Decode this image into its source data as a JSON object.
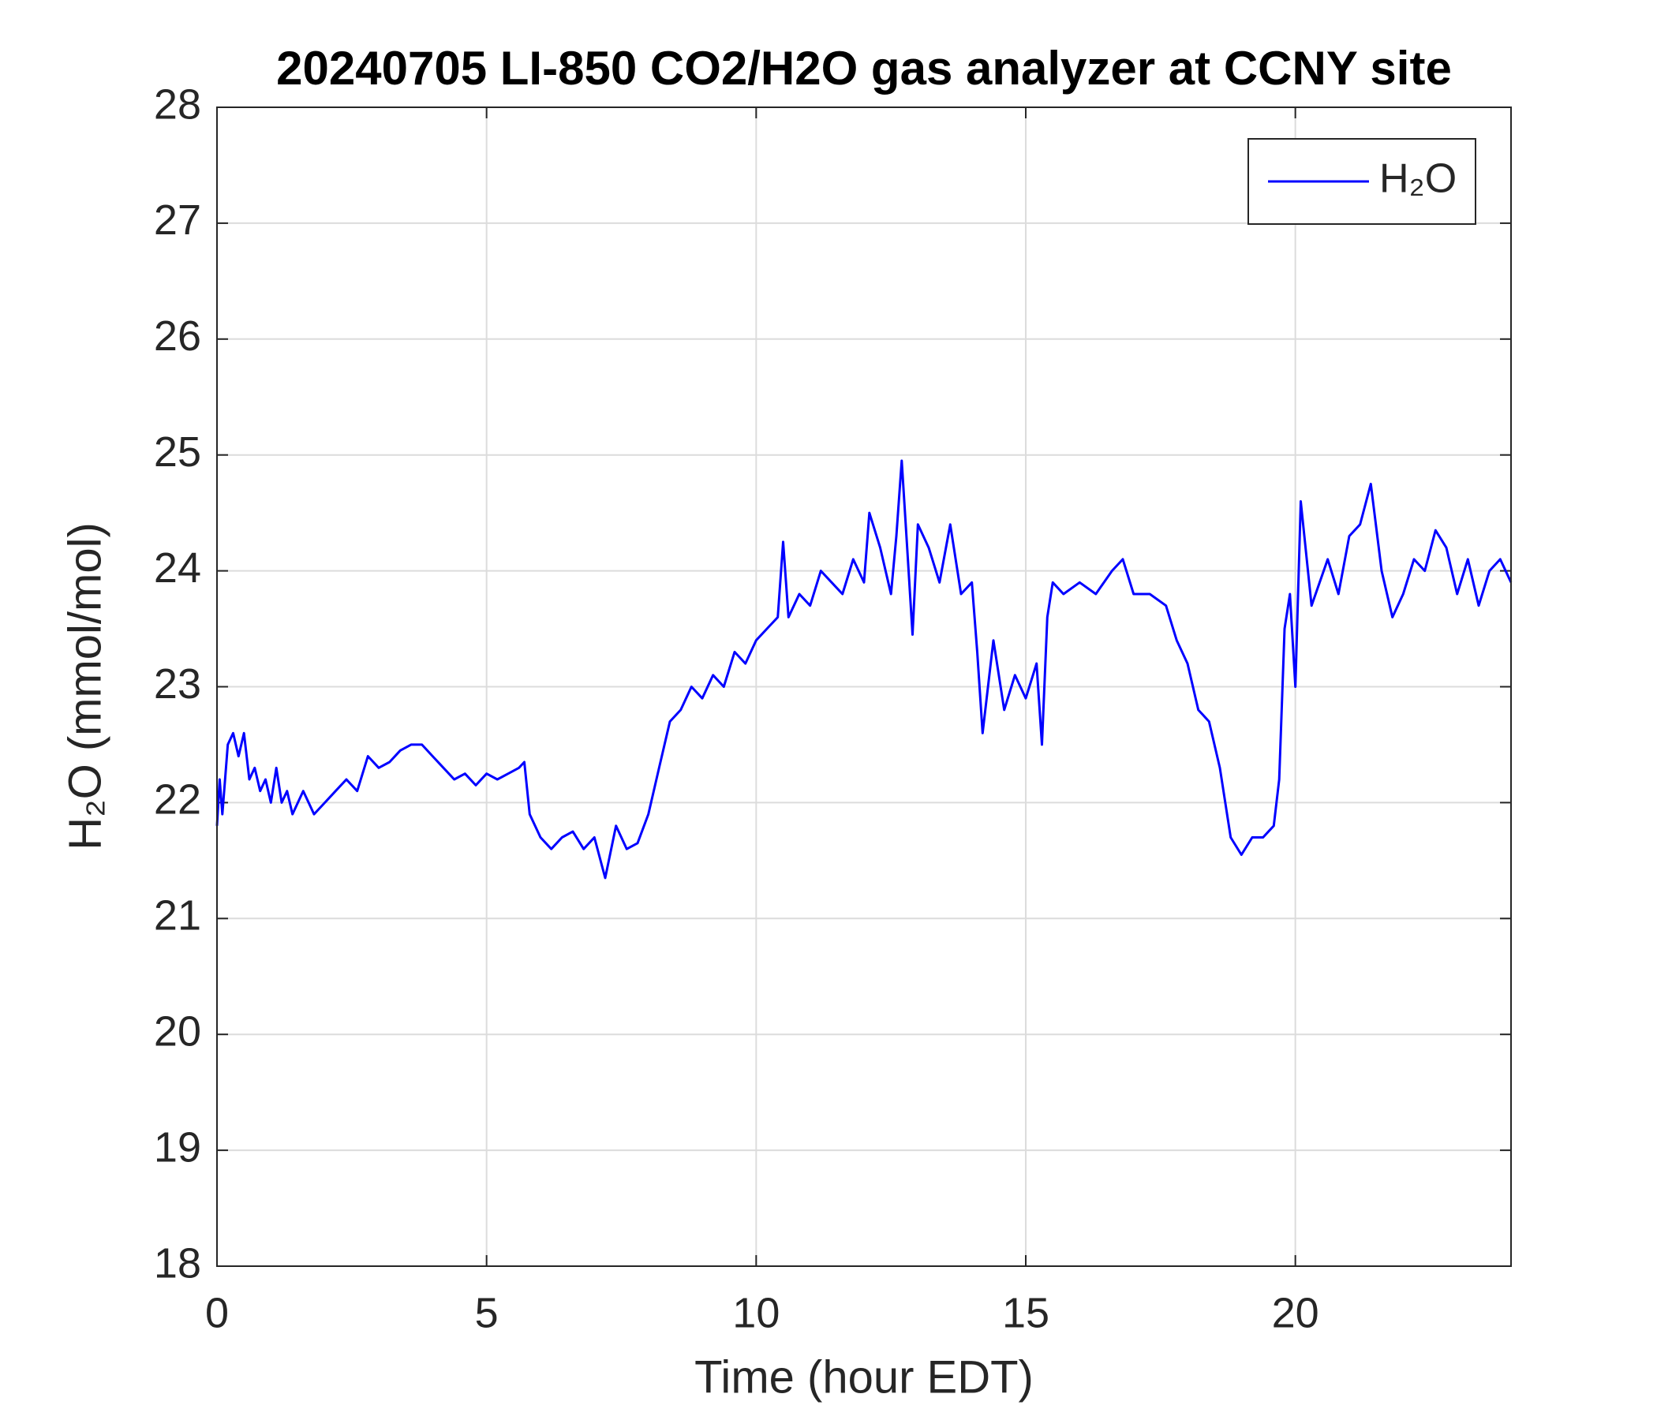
{
  "chart_data": {
    "type": "line",
    "title": "20240705 LI-850 CO2/H2O gas analyzer at CCNY site",
    "xlabel": "Time (hour EDT)",
    "ylabel": "H₂O (mmol/mol)",
    "xlim": [
      0,
      24
    ],
    "xticks": [
      0,
      5,
      10,
      15,
      20
    ],
    "ylim": [
      18,
      28
    ],
    "yticks": [
      18,
      19,
      20,
      21,
      22,
      23,
      24,
      25,
      26,
      27,
      28
    ],
    "grid": true,
    "legend": "upper right",
    "x": [
      0,
      0.05,
      0.1,
      0.2,
      0.3,
      0.4,
      0.5,
      0.6,
      0.7,
      0.8,
      0.9,
      1.0,
      1.1,
      1.2,
      1.3,
      1.4,
      1.6,
      1.8,
      2.0,
      2.2,
      2.4,
      2.6,
      2.8,
      3.0,
      3.2,
      3.4,
      3.6,
      3.8,
      4.0,
      4.2,
      4.4,
      4.6,
      4.8,
      5.0,
      5.2,
      5.4,
      5.6,
      5.7,
      5.8,
      6.0,
      6.2,
      6.4,
      6.6,
      6.8,
      7.0,
      7.2,
      7.4,
      7.6,
      7.8,
      8.0,
      8.2,
      8.4,
      8.6,
      8.8,
      9.0,
      9.2,
      9.4,
      9.6,
      9.8,
      10.0,
      10.2,
      10.4,
      10.5,
      10.6,
      10.8,
      11.0,
      11.2,
      11.4,
      11.6,
      11.8,
      12.0,
      12.1,
      12.3,
      12.5,
      12.6,
      12.7,
      12.8,
      12.9,
      13.0,
      13.2,
      13.4,
      13.6,
      13.8,
      14.0,
      14.1,
      14.2,
      14.4,
      14.6,
      14.8,
      15.0,
      15.2,
      15.3,
      15.4,
      15.5,
      15.7,
      16.0,
      16.3,
      16.6,
      16.8,
      17.0,
      17.3,
      17.6,
      17.8,
      18.0,
      18.2,
      18.4,
      18.6,
      18.8,
      19.0,
      19.2,
      19.4,
      19.6,
      19.7,
      19.8,
      19.9,
      20.0,
      20.1,
      20.3,
      20.6,
      20.8,
      21.0,
      21.2,
      21.4,
      21.6,
      21.8,
      22.0,
      22.2,
      22.4,
      22.6,
      22.8,
      23.0,
      23.2,
      23.4,
      23.6,
      23.8,
      24.0
    ],
    "series": [
      {
        "name": "H₂O",
        "color": "#0000ff",
        "values": [
          21.8,
          22.2,
          21.9,
          22.5,
          22.6,
          22.4,
          22.6,
          22.2,
          22.3,
          22.1,
          22.2,
          22.0,
          22.3,
          22.0,
          22.1,
          21.9,
          22.1,
          21.9,
          22.0,
          22.1,
          22.2,
          22.1,
          22.4,
          22.3,
          22.35,
          22.45,
          22.5,
          22.5,
          22.4,
          22.3,
          22.2,
          22.25,
          22.15,
          22.25,
          22.2,
          22.25,
          22.3,
          22.35,
          21.9,
          21.7,
          21.6,
          21.7,
          21.75,
          21.6,
          21.7,
          21.35,
          21.8,
          21.6,
          21.65,
          21.9,
          22.3,
          22.7,
          22.8,
          23.0,
          22.9,
          23.1,
          23.0,
          23.3,
          23.2,
          23.4,
          23.5,
          23.6,
          24.25,
          23.6,
          23.8,
          23.7,
          24.0,
          23.9,
          23.8,
          24.1,
          23.9,
          24.5,
          24.2,
          23.8,
          24.3,
          24.95,
          24.2,
          23.45,
          24.4,
          24.2,
          23.9,
          24.4,
          23.8,
          23.9,
          23.3,
          22.6,
          23.4,
          22.8,
          23.1,
          22.9,
          23.2,
          22.5,
          23.6,
          23.9,
          23.8,
          23.9,
          23.8,
          24.0,
          24.1,
          23.8,
          23.8,
          23.7,
          23.4,
          23.2,
          22.8,
          22.7,
          22.3,
          21.7,
          21.55,
          21.7,
          21.7,
          21.8,
          22.2,
          23.5,
          23.8,
          23.0,
          24.6,
          23.7,
          24.1,
          23.8,
          24.3,
          24.4,
          24.75,
          24.0,
          23.6,
          23.8,
          24.1,
          24.0,
          24.35,
          24.2,
          23.8,
          24.1,
          23.7,
          24.0,
          24.1,
          23.9
        ]
      }
    ]
  }
}
